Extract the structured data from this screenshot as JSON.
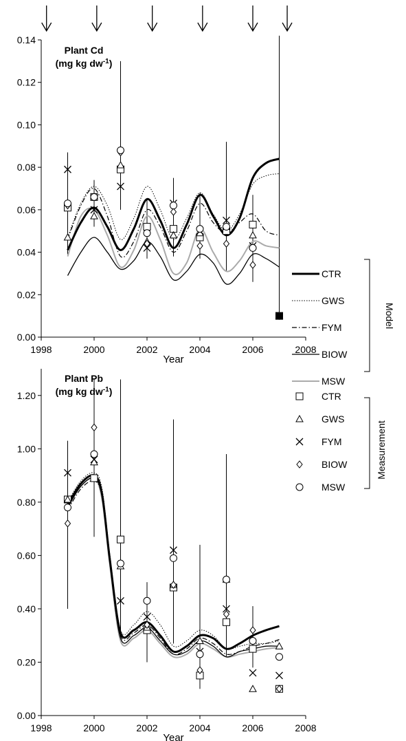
{
  "chart_data": [
    {
      "type": "line",
      "title": "Plant Cd",
      "subtitle": "(mg kg dw",
      "subtitle_sup": "-1",
      "subtitle_end": ")",
      "xlabel": "Year",
      "ylabel": "",
      "xlim": [
        1998,
        2008
      ],
      "ylim": [
        0,
        0.14
      ],
      "xticks": [
        1998,
        2000,
        2002,
        2004,
        2006,
        2008
      ],
      "xtick_labels": [
        "1998",
        "2000",
        "2002",
        "2004",
        "2006",
        "2008"
      ],
      "yticks": [
        0,
        0.02,
        0.04,
        0.06,
        0.08,
        0.1,
        0.12,
        0.14
      ],
      "ytick_labels": [
        "0.00",
        "0.02",
        "0.04",
        "0.06",
        "0.08",
        "0.10",
        "0.12",
        "0.14"
      ],
      "arrows_at_year": [
        1998.2,
        2000.1,
        2002.2,
        2004.1,
        2006.0,
        2007.3
      ],
      "model_series": [
        {
          "name": "CTR",
          "x": [
            1999,
            1999.5,
            2000,
            2000.5,
            2001,
            2001.5,
            2002,
            2002.5,
            2003,
            2003.5,
            2004,
            2004.5,
            2005,
            2005.5,
            2006,
            2006.5,
            2007
          ],
          "values": [
            0.041,
            0.054,
            0.061,
            0.052,
            0.041,
            0.051,
            0.065,
            0.055,
            0.042,
            0.053,
            0.067,
            0.057,
            0.048,
            0.056,
            0.075,
            0.082,
            0.084
          ]
        },
        {
          "name": "GWS",
          "x": [
            1999,
            1999.5,
            2000,
            2000.5,
            2001,
            2001.5,
            2002,
            2002.5,
            2003,
            2003.5,
            2004,
            2004.5,
            2005,
            2005.5,
            2006,
            2006.5,
            2007
          ],
          "values": [
            0.047,
            0.063,
            0.071,
            0.062,
            0.046,
            0.056,
            0.071,
            0.06,
            0.046,
            0.056,
            0.068,
            0.058,
            0.05,
            0.058,
            0.072,
            0.076,
            0.077
          ]
        },
        {
          "name": "FYM",
          "x": [
            1999,
            1999.5,
            2000,
            2000.5,
            2001,
            2001.5,
            2002,
            2002.5,
            2003,
            2003.5,
            2004,
            2004.5,
            2005,
            2005.5,
            2006,
            2006.5,
            2007
          ],
          "values": [
            0.046,
            0.062,
            0.07,
            0.057,
            0.038,
            0.045,
            0.06,
            0.052,
            0.04,
            0.05,
            0.063,
            0.054,
            0.049,
            0.054,
            0.058,
            0.05,
            0.048
          ]
        },
        {
          "name": "BIOW",
          "x": [
            1999,
            1999.5,
            2000,
            2000.5,
            2001,
            2001.5,
            2002,
            2002.5,
            2003,
            2003.5,
            2004,
            2004.5,
            2005,
            2005.5,
            2006,
            2006.5,
            2007
          ],
          "values": [
            0.029,
            0.04,
            0.047,
            0.04,
            0.032,
            0.036,
            0.045,
            0.038,
            0.027,
            0.031,
            0.039,
            0.035,
            0.025,
            0.03,
            0.039,
            0.037,
            0.033
          ]
        },
        {
          "name": "MSW",
          "x": [
            1999,
            1999.5,
            2000,
            2000.5,
            2001,
            2001.5,
            2002,
            2002.5,
            2003,
            2003.5,
            2004,
            2004.5,
            2005,
            2005.5,
            2006,
            2006.5,
            2007
          ],
          "values": [
            0.038,
            0.057,
            0.06,
            0.048,
            0.033,
            0.041,
            0.057,
            0.046,
            0.03,
            0.035,
            0.051,
            0.04,
            0.031,
            0.036,
            0.045,
            0.043,
            0.042
          ]
        }
      ],
      "measurements": [
        {
          "name": "CTR",
          "marker": "square",
          "x": [
            1999,
            2000,
            2001,
            2002,
            2003,
            2004,
            2005,
            2006,
            2007
          ],
          "values": [
            0.061,
            0.066,
            0.079,
            0.052,
            0.051,
            0.047,
            0.05,
            0.053,
            0.01
          ]
        },
        {
          "name": "GWS",
          "marker": "triangle",
          "x": [
            1999,
            2000,
            2001,
            2002,
            2003,
            2004,
            2005,
            2006,
            2007
          ],
          "values": [
            0.047,
            0.057,
            0.081,
            0.045,
            0.048,
            0.049,
            0.052,
            0.048,
            0.01
          ]
        },
        {
          "name": "FYM",
          "marker": "cross",
          "x": [
            1999,
            2000,
            2001,
            2002,
            2003,
            2004,
            2005,
            2006,
            2007
          ],
          "values": [
            0.079,
            0.06,
            0.071,
            0.042,
            0.063,
            0.05,
            0.055,
            0.043,
            0.01
          ]
        },
        {
          "name": "BIOW",
          "marker": "diamond",
          "x": [
            1999,
            2000,
            2001,
            2002,
            2003,
            2004,
            2005,
            2006,
            2007
          ],
          "values": [
            0.062,
            0.066,
            0.087,
            0.044,
            0.059,
            0.043,
            0.044,
            0.034,
            0.01
          ]
        },
        {
          "name": "MSW",
          "marker": "circle",
          "x": [
            1999,
            2000,
            2001,
            2002,
            2003,
            2004,
            2005,
            2006,
            2007
          ],
          "values": [
            0.063,
            0.066,
            0.088,
            0.049,
            0.062,
            0.051,
            0.052,
            0.042,
            0.01
          ]
        }
      ],
      "error_bars": [
        {
          "x": 1999,
          "low": 0.039,
          "high": 0.087
        },
        {
          "x": 2000,
          "low": 0.052,
          "high": 0.074
        },
        {
          "x": 2001,
          "low": 0.06,
          "high": 0.13
        },
        {
          "x": 2002,
          "low": 0.037,
          "high": 0.065
        },
        {
          "x": 2003,
          "low": 0.038,
          "high": 0.075
        },
        {
          "x": 2004,
          "low": 0.037,
          "high": 0.068
        },
        {
          "x": 2005,
          "low": 0.031,
          "high": 0.092
        },
        {
          "x": 2006,
          "low": 0.026,
          "high": 0.067
        },
        {
          "x": 2007,
          "low": 0.01,
          "high": 0.142
        }
      ]
    },
    {
      "type": "line",
      "title": "Plant Pb",
      "subtitle": "(mg kg dw",
      "subtitle_sup": "-1",
      "subtitle_end": ")",
      "xlabel": "Year",
      "ylabel": "",
      "xlim": [
        1998,
        2008
      ],
      "ylim": [
        0,
        1.3
      ],
      "xticks": [
        1998,
        2000,
        2002,
        2004,
        2006,
        2008
      ],
      "xtick_labels": [
        "1998",
        "2000",
        "2002",
        "2004",
        "2006",
        "2008"
      ],
      "yticks": [
        0,
        0.2,
        0.4,
        0.6,
        0.8,
        1.0,
        1.2
      ],
      "ytick_labels": [
        "0.00",
        "0.20",
        "0.40",
        "0.60",
        "0.80",
        "1.00",
        "1.20"
      ],
      "model_series": [
        {
          "name": "CTR",
          "x": [
            1999,
            1999.5,
            2000,
            2000.3,
            2000.6,
            2001,
            2001.5,
            2002,
            2002.5,
            2003,
            2003.5,
            2004,
            2004.5,
            2005,
            2005.5,
            2006,
            2006.5,
            2007
          ],
          "values": [
            0.79,
            0.87,
            0.9,
            0.83,
            0.58,
            0.31,
            0.32,
            0.35,
            0.3,
            0.24,
            0.26,
            0.3,
            0.29,
            0.25,
            0.27,
            0.3,
            0.32,
            0.335
          ]
        },
        {
          "name": "GWS",
          "x": [
            1999,
            1999.5,
            2000,
            2000.3,
            2000.6,
            2001,
            2001.5,
            2002,
            2002.5,
            2003,
            2003.5,
            2004,
            2004.5,
            2005,
            2005.5,
            2006,
            2006.5,
            2007
          ],
          "values": [
            0.8,
            0.88,
            0.91,
            0.85,
            0.6,
            0.32,
            0.34,
            0.39,
            0.34,
            0.26,
            0.28,
            0.32,
            0.3,
            0.25,
            0.26,
            0.27,
            0.27,
            0.28
          ]
        },
        {
          "name": "FYM",
          "x": [
            1999,
            1999.5,
            2000,
            2000.3,
            2000.6,
            2001,
            2001.5,
            2002,
            2002.5,
            2003,
            2003.5,
            2004,
            2004.5,
            2005,
            2005.5,
            2006,
            2006.5,
            2007
          ],
          "values": [
            0.77,
            0.85,
            0.88,
            0.82,
            0.57,
            0.3,
            0.31,
            0.34,
            0.29,
            0.23,
            0.25,
            0.29,
            0.27,
            0.23,
            0.24,
            0.26,
            0.27,
            0.285
          ]
        },
        {
          "name": "BIOW",
          "x": [
            1999,
            1999.5,
            2000,
            2000.3,
            2000.6,
            2001,
            2001.5,
            2002,
            2002.5,
            2003,
            2003.5,
            2004,
            2004.5,
            2005,
            2005.5,
            2006,
            2006.5,
            2007
          ],
          "values": [
            0.78,
            0.86,
            0.89,
            0.82,
            0.57,
            0.29,
            0.3,
            0.33,
            0.28,
            0.23,
            0.24,
            0.28,
            0.26,
            0.22,
            0.24,
            0.25,
            0.26,
            0.26
          ]
        },
        {
          "name": "MSW",
          "x": [
            1999,
            1999.5,
            2000,
            2000.3,
            2000.6,
            2001,
            2001.5,
            2002,
            2002.5,
            2003,
            2003.5,
            2004,
            2004.5,
            2005,
            2005.5,
            2006,
            2006.5,
            2007
          ],
          "values": [
            0.78,
            0.86,
            0.89,
            0.81,
            0.56,
            0.28,
            0.29,
            0.32,
            0.27,
            0.22,
            0.23,
            0.27,
            0.25,
            0.22,
            0.23,
            0.24,
            0.25,
            0.255
          ]
        }
      ],
      "measurements": [
        {
          "name": "CTR",
          "marker": "square",
          "x": [
            1999,
            2000,
            2001,
            2002,
            2003,
            2004,
            2005,
            2006,
            2007
          ],
          "values": [
            0.81,
            0.89,
            0.66,
            0.32,
            0.48,
            0.15,
            0.35,
            0.25,
            0.1
          ]
        },
        {
          "name": "GWS",
          "marker": "triangle",
          "x": [
            1999,
            2000,
            2001,
            2002,
            2003,
            2004,
            2005,
            2006,
            2007
          ],
          "values": [
            0.81,
            0.95,
            0.56,
            0.33,
            0.49,
            0.28,
            0.51,
            0.1,
            0.26
          ]
        },
        {
          "name": "FYM",
          "marker": "cross",
          "x": [
            1999,
            2000,
            2001,
            2002,
            2003,
            2004,
            2005,
            2006,
            2007
          ],
          "values": [
            0.91,
            0.96,
            0.43,
            0.37,
            0.62,
            0.24,
            0.4,
            0.16,
            0.15
          ]
        },
        {
          "name": "BIOW",
          "marker": "diamond",
          "x": [
            1999,
            2000,
            2001,
            2002,
            2003,
            2004,
            2005,
            2006,
            2007
          ],
          "values": [
            0.72,
            1.08,
            0.57,
            0.34,
            0.49,
            0.17,
            0.38,
            0.32,
            0.1
          ]
        },
        {
          "name": "MSW",
          "marker": "circle",
          "x": [
            1999,
            2000,
            2001,
            2002,
            2003,
            2004,
            2005,
            2006,
            2007
          ],
          "values": [
            0.78,
            0.98,
            0.57,
            0.43,
            0.59,
            0.23,
            0.51,
            0.28,
            0.22
          ]
        }
      ],
      "error_bars": [
        {
          "x": 1999,
          "low": 0.4,
          "high": 1.03
        },
        {
          "x": 2000,
          "low": 0.67,
          "high": 1.26
        },
        {
          "x": 2001,
          "low": 0.3,
          "high": 1.26
        },
        {
          "x": 2002,
          "low": 0.2,
          "high": 0.5
        },
        {
          "x": 2003,
          "low": 0.27,
          "high": 1.11
        },
        {
          "x": 2004,
          "low": 0.1,
          "high": 0.64
        },
        {
          "x": 2005,
          "low": 0.22,
          "high": 0.98
        },
        {
          "x": 2006,
          "low": 0.18,
          "high": 0.41
        },
        {
          "x": 2007,
          "low": 0.1,
          "high": 0.1
        }
      ]
    }
  ],
  "legend": {
    "model_group_label": "Model",
    "measurement_group_label": "Measurement",
    "model_items": [
      {
        "name": "CTR",
        "style": "thick-black"
      },
      {
        "name": "GWS",
        "style": "dotted"
      },
      {
        "name": "FYM",
        "style": "dash-dot"
      },
      {
        "name": "BIOW",
        "style": "thin-black"
      },
      {
        "name": "MSW",
        "style": "thin-grey"
      }
    ],
    "measurement_items": [
      {
        "name": "CTR",
        "marker": "square"
      },
      {
        "name": "GWS",
        "marker": "triangle"
      },
      {
        "name": "FYM",
        "marker": "cross"
      },
      {
        "name": "BIOW",
        "marker": "diamond"
      },
      {
        "name": "MSW",
        "marker": "circle"
      }
    ]
  },
  "colors": {
    "ink": "#000000",
    "msw_line": "#aaaaaa"
  }
}
